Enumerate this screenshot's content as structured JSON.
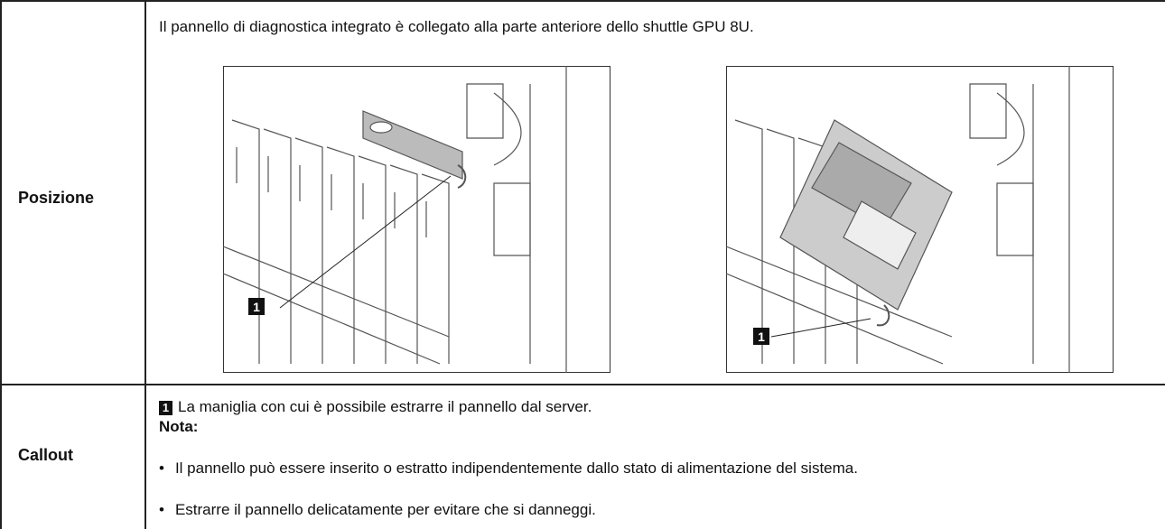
{
  "table": {
    "rows": [
      {
        "header": "Posizione",
        "text": "Il pannello di diagnostica integrato è collegato alla parte anteriore dello shuttle GPU 8U.",
        "figures": [
          {
            "callout": "1"
          },
          {
            "callout": "1"
          }
        ]
      },
      {
        "header": "Callout",
        "callout": "1",
        "text": "La maniglia con cui è possibile estrarre il pannello dal server.",
        "note_label": "Nota:",
        "notes": [
          "Il pannello può essere inserito o estratto indipendentemente dallo stato di alimentazione del sistema.",
          "Estrarre il pannello delicatamente per evitare che si danneggi."
        ]
      }
    ]
  }
}
